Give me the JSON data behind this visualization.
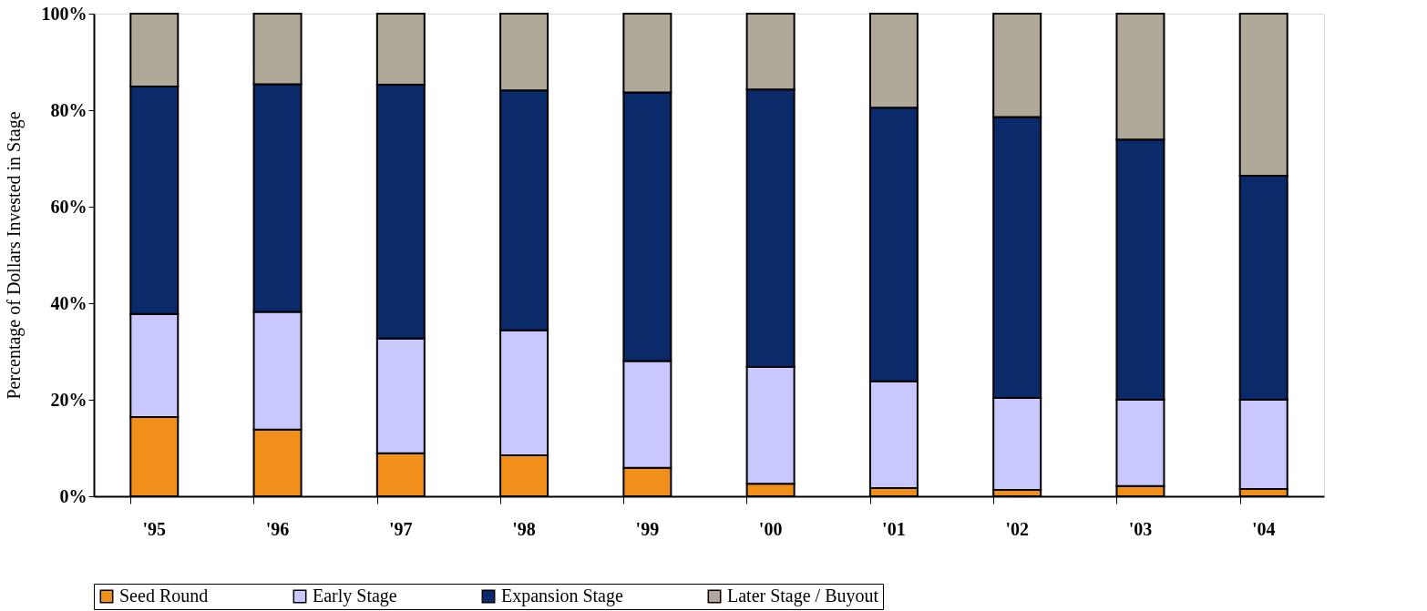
{
  "chart_data": {
    "type": "bar",
    "stacked": true,
    "ylabel": "Percentage of Dollars Invested in Stage",
    "categories": [
      "'95",
      "'96",
      "'97",
      "'98",
      "'99",
      "'00",
      "'01",
      "'02",
      "'03",
      "'04"
    ],
    "series": [
      {
        "name": "Seed Round",
        "color": "#f0901a",
        "values": [
          16.4,
          13.8,
          8.9,
          8.5,
          5.9,
          2.6,
          1.7,
          1.3,
          2.1,
          1.5
        ]
      },
      {
        "name": "Early Stage",
        "color": "#c8c8ff",
        "values": [
          21.4,
          24.4,
          23.8,
          25.9,
          22.1,
          24.2,
          22.1,
          19.1,
          17.9,
          18.5
        ]
      },
      {
        "name": "Expansion Stage",
        "color": "#0a2a6a",
        "values": [
          47.1,
          47.2,
          52.6,
          49.7,
          55.7,
          57.5,
          56.7,
          58.2,
          53.9,
          46.4
        ]
      },
      {
        "name": "Later Stage / Buyout",
        "color": "#b0a898",
        "values": [
          15.1,
          14.6,
          14.7,
          15.9,
          16.3,
          15.7,
          19.5,
          21.4,
          26.1,
          33.6
        ]
      }
    ],
    "ylim": [
      0,
      100
    ],
    "yticks": [
      {
        "value": 0,
        "label": "0%"
      },
      {
        "value": 20,
        "label": "20%"
      },
      {
        "value": 40,
        "label": "40%"
      },
      {
        "value": 60,
        "label": "60%"
      },
      {
        "value": 80,
        "label": "80%"
      },
      {
        "value": 100,
        "label": "100%"
      }
    ],
    "grid": false,
    "legend": "bottom"
  }
}
